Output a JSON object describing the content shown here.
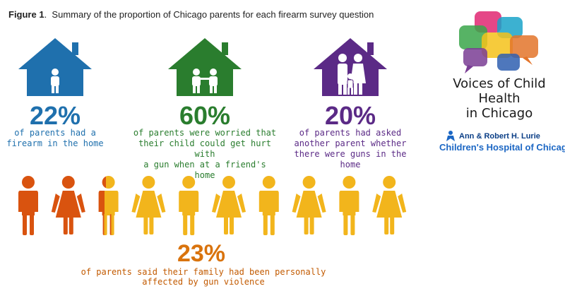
{
  "figure": {
    "label": "Figure 1",
    "title": "Summary of the proportion of Chicago parents for each firearm survey question"
  },
  "stats": [
    {
      "percent": "22%",
      "lines": [
        "of parents had a",
        "firearm in the home"
      ],
      "color": "#1f70ad",
      "icon": "house-child-icon"
    },
    {
      "percent": "60%",
      "lines": [
        "of parents were worried that",
        "their child could get hurt with",
        "a gun when at a friend's home"
      ],
      "color": "#2a7d2e",
      "icon": "house-two-children-icon"
    },
    {
      "percent": "20%",
      "lines": [
        "of parents had asked",
        "another parent whether",
        "there were guns in the home"
      ],
      "color": "#5b2a86",
      "icon": "house-family-icon"
    }
  ],
  "affected": {
    "percent": "23%",
    "text": "of parents said their family had been personally affected by gun violence",
    "affected_fraction": 0.23,
    "color_affected": "#d9530f",
    "color_unaffected": "#f2b51c"
  },
  "brand": {
    "line1": "Voices of Child Health",
    "line2": "in Chicago",
    "hospital_line1": "Ann & Robert H. Lurie",
    "hospital_line2": "Children's Hospital of Chicago",
    "hospital_mark": "®"
  }
}
